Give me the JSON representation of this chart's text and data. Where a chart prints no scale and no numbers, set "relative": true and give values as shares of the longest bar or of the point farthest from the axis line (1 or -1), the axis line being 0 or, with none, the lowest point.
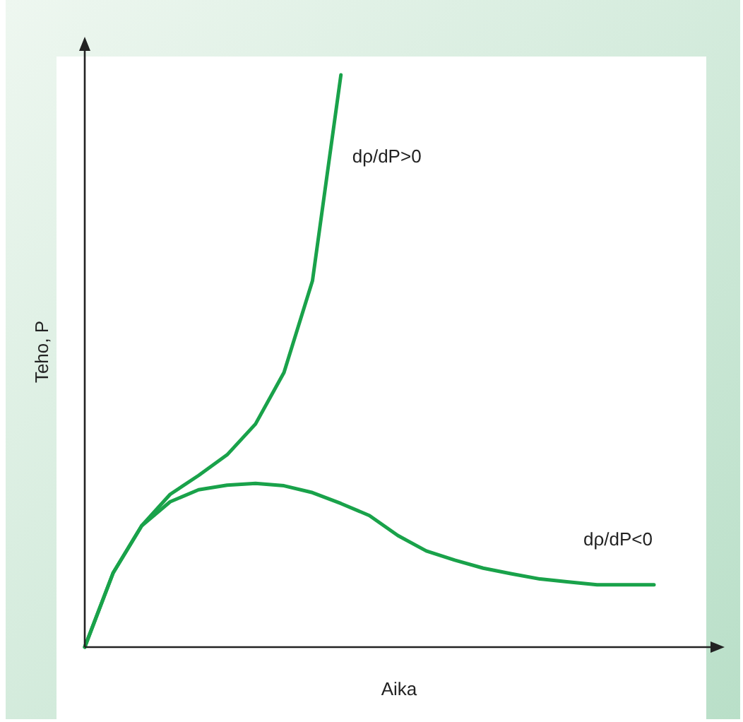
{
  "chart_data": {
    "type": "line",
    "relative": true,
    "xlabel": "Aika",
    "ylabel": "Teho, P",
    "marker": "none",
    "line_style": "solid",
    "categories": [
      null,
      null,
      null,
      null,
      null,
      null,
      null,
      null,
      null,
      null,
      null,
      null,
      null,
      null,
      null,
      null,
      null,
      null,
      null,
      null,
      null
    ],
    "series": [
      {
        "color": "#19a24a",
        "values": [
          0,
          0.13,
          0.212,
          0.267,
          0.3,
          0.336,
          0.39,
          0.48,
          0.64,
          1,
          null,
          null,
          null,
          null,
          null,
          null,
          null,
          null,
          null,
          null,
          null
        ]
      },
      {
        "color": "#19a24a",
        "values": [
          0,
          0.13,
          0.212,
          0.254,
          0.275,
          0.283,
          0.286,
          0.282,
          0.27,
          0.251,
          0.23,
          0.195,
          0.168,
          0.152,
          0.138,
          0.128,
          0.119,
          0.114,
          0.109,
          0.109,
          0.109
        ]
      }
    ],
    "annotations": [
      "dρ/dP>0",
      "dρ/dP<0"
    ]
  }
}
